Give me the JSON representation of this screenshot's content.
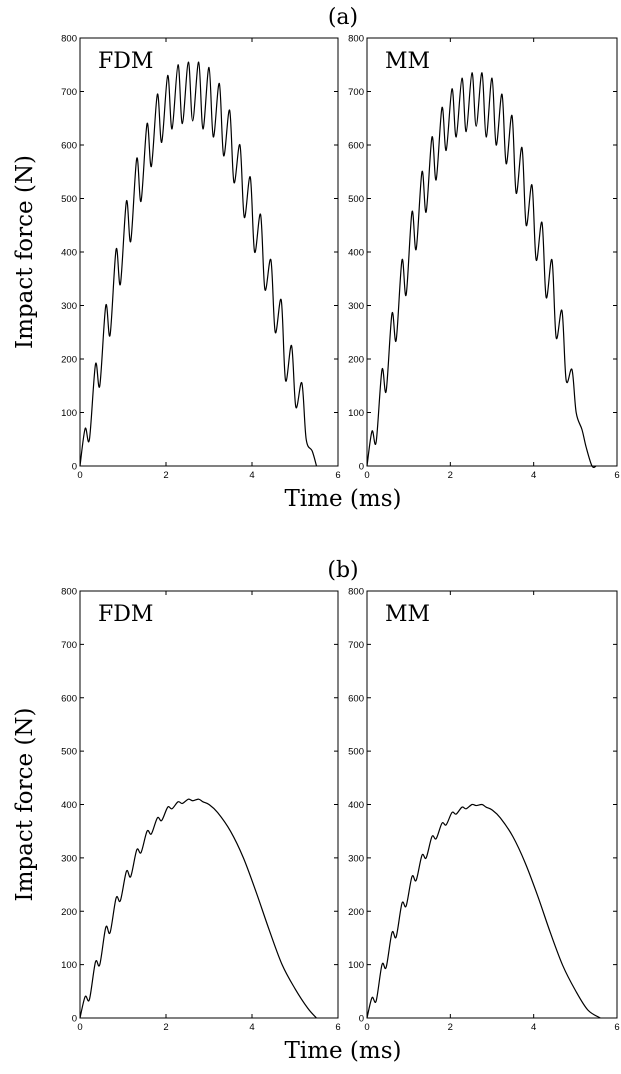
{
  "chart_data": [
    {
      "type": "line",
      "panel_title": "(a)",
      "label": "FDM",
      "ylabel": "Impact force (N)",
      "xlabel": "",
      "xlim": [
        0,
        6
      ],
      "ylim": [
        0,
        800
      ],
      "xticks": [
        0,
        2,
        4,
        6
      ],
      "yticks": [
        0,
        100,
        200,
        300,
        400,
        500,
        600,
        700,
        800
      ],
      "x": [
        0,
        0.12,
        0.22,
        0.36,
        0.46,
        0.6,
        0.7,
        0.84,
        0.94,
        1.08,
        1.18,
        1.32,
        1.42,
        1.56,
        1.66,
        1.8,
        1.9,
        2.04,
        2.14,
        2.28,
        2.38,
        2.52,
        2.62,
        2.76,
        2.86,
        3.0,
        3.1,
        3.24,
        3.34,
        3.48,
        3.58,
        3.72,
        3.82,
        3.96,
        4.06,
        4.2,
        4.3,
        4.44,
        4.54,
        4.68,
        4.78,
        4.92,
        5.02,
        5.16,
        5.26,
        5.4,
        5.5
      ],
      "y": [
        0,
        70,
        50,
        190,
        150,
        300,
        245,
        405,
        340,
        495,
        420,
        575,
        495,
        640,
        560,
        695,
        605,
        730,
        630,
        750,
        640,
        755,
        645,
        755,
        630,
        745,
        615,
        715,
        580,
        665,
        530,
        600,
        465,
        540,
        400,
        470,
        330,
        385,
        250,
        310,
        160,
        225,
        110,
        155,
        50,
        28,
        0
      ]
    },
    {
      "type": "line",
      "panel_title": "",
      "label": "MM",
      "ylabel": "",
      "xlabel": "Time (ms)",
      "xlim": [
        0,
        6
      ],
      "ylim": [
        0,
        800
      ],
      "xticks": [
        0,
        2,
        4,
        6
      ],
      "yticks": [
        0,
        100,
        200,
        300,
        400,
        500,
        600,
        700,
        800
      ],
      "x": [
        0,
        0.12,
        0.22,
        0.36,
        0.46,
        0.6,
        0.7,
        0.84,
        0.94,
        1.08,
        1.18,
        1.32,
        1.42,
        1.56,
        1.66,
        1.8,
        1.9,
        2.04,
        2.14,
        2.28,
        2.38,
        2.52,
        2.62,
        2.76,
        2.86,
        3.0,
        3.1,
        3.24,
        3.34,
        3.48,
        3.58,
        3.72,
        3.82,
        3.96,
        4.06,
        4.2,
        4.3,
        4.44,
        4.54,
        4.68,
        4.78,
        4.92,
        5.02,
        5.16,
        5.26,
        5.4,
        5.5
      ],
      "y": [
        0,
        65,
        45,
        180,
        140,
        285,
        235,
        385,
        320,
        475,
        405,
        550,
        475,
        615,
        535,
        670,
        590,
        705,
        615,
        725,
        625,
        735,
        635,
        735,
        615,
        725,
        600,
        695,
        565,
        655,
        510,
        595,
        450,
        525,
        385,
        455,
        315,
        385,
        240,
        290,
        160,
        180,
        100,
        68,
        35,
        0,
        0
      ]
    },
    {
      "type": "line",
      "panel_title": "(b)",
      "label": "FDM",
      "ylabel": "Impact force (N)",
      "xlabel": "",
      "xlim": [
        0,
        6
      ],
      "ylim": [
        0,
        800
      ],
      "xticks": [
        0,
        2,
        4,
        6
      ],
      "yticks": [
        0,
        100,
        200,
        300,
        400,
        500,
        600,
        700,
        800
      ],
      "x": [
        0,
        0.12,
        0.22,
        0.36,
        0.46,
        0.6,
        0.7,
        0.84,
        0.94,
        1.08,
        1.18,
        1.32,
        1.42,
        1.56,
        1.66,
        1.8,
        1.9,
        2.04,
        2.14,
        2.28,
        2.38,
        2.52,
        2.62,
        2.76,
        2.86,
        3.0,
        3.2,
        3.5,
        3.8,
        4.1,
        4.4,
        4.7,
        5.0,
        5.3,
        5.5
      ],
      "y": [
        0,
        40,
        35,
        105,
        100,
        170,
        160,
        225,
        220,
        275,
        265,
        315,
        310,
        350,
        345,
        375,
        370,
        395,
        392,
        405,
        402,
        410,
        407,
        410,
        405,
        400,
        385,
        350,
        300,
        235,
        165,
        100,
        55,
        18,
        0
      ]
    },
    {
      "type": "line",
      "panel_title": "",
      "label": "MM",
      "ylabel": "",
      "xlabel": "Time (ms)",
      "xlim": [
        0,
        6
      ],
      "ylim": [
        0,
        800
      ],
      "xticks": [
        0,
        2,
        4,
        6
      ],
      "yticks": [
        0,
        100,
        200,
        300,
        400,
        500,
        600,
        700,
        800
      ],
      "x": [
        0,
        0.12,
        0.22,
        0.36,
        0.46,
        0.6,
        0.7,
        0.84,
        0.94,
        1.08,
        1.18,
        1.32,
        1.42,
        1.56,
        1.66,
        1.8,
        1.9,
        2.04,
        2.14,
        2.28,
        2.38,
        2.52,
        2.62,
        2.76,
        2.86,
        3.0,
        3.2,
        3.5,
        3.8,
        4.1,
        4.4,
        4.7,
        5.0,
        5.3,
        5.6
      ],
      "y": [
        0,
        38,
        32,
        100,
        95,
        160,
        152,
        215,
        210,
        265,
        258,
        305,
        300,
        340,
        336,
        365,
        362,
        385,
        382,
        395,
        392,
        400,
        398,
        400,
        395,
        390,
        375,
        340,
        290,
        228,
        160,
        98,
        52,
        15,
        0
      ]
    }
  ]
}
